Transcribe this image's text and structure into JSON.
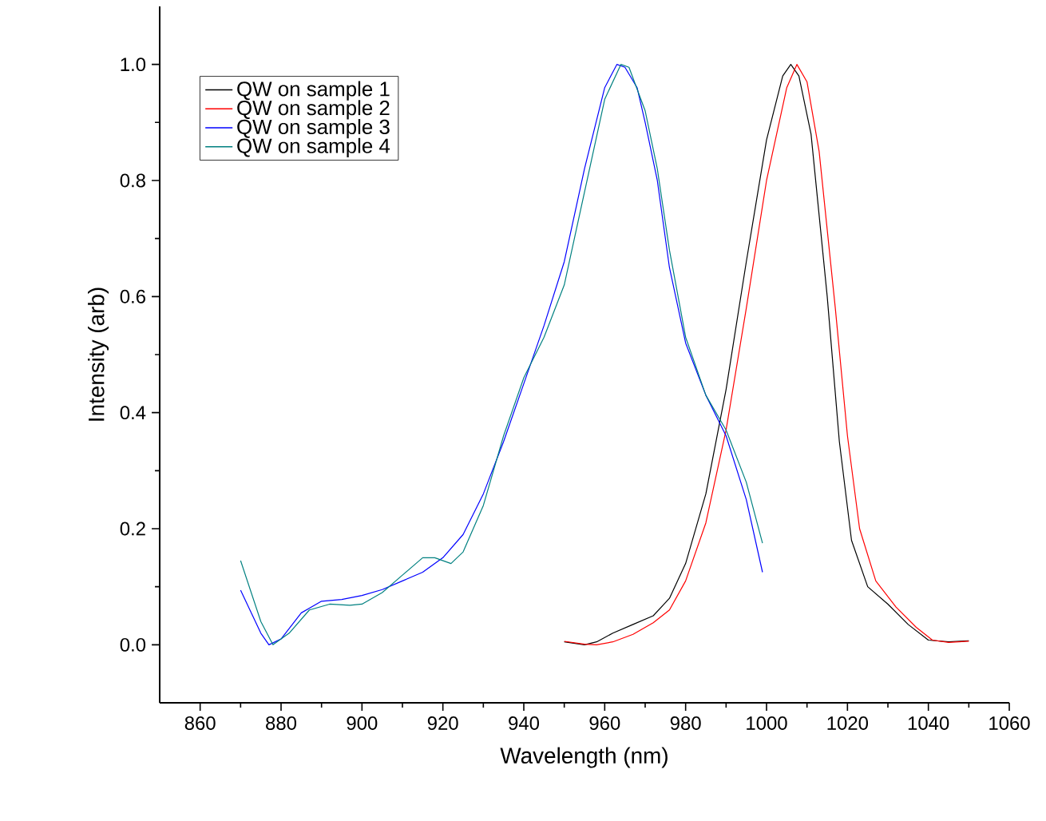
{
  "chart_data": {
    "type": "line",
    "xlabel": "Wavelength (nm)",
    "ylabel": "Intensity (arb)",
    "xlim": [
      850,
      1060
    ],
    "ylim": [
      -0.1,
      1.1
    ],
    "xticks": [
      860,
      880,
      900,
      920,
      940,
      960,
      980,
      1000,
      1020,
      1040,
      1060
    ],
    "yticks": [
      {
        "value": 0,
        "label": "0.0"
      },
      {
        "value": 0.2,
        "label": "0.2"
      },
      {
        "value": 0.4,
        "label": "0.4"
      },
      {
        "value": 0.6,
        "label": "0.6"
      },
      {
        "value": 0.8,
        "label": "0.8"
      },
      {
        "value": 1.0,
        "label": "1.0"
      }
    ],
    "legend": "top left",
    "grid": false,
    "series": [
      {
        "name": "QW on sample 1",
        "color": "#000000",
        "x": [
          950,
          955,
          958,
          962,
          967,
          972,
          976,
          980,
          985,
          990,
          995,
          1000,
          1004,
          1006,
          1008,
          1011,
          1015,
          1018,
          1021,
          1025,
          1030,
          1035,
          1040,
          1045,
          1050
        ],
        "values": [
          0.005,
          0.0,
          0.005,
          0.02,
          0.035,
          0.05,
          0.08,
          0.14,
          0.26,
          0.44,
          0.66,
          0.87,
          0.98,
          1.0,
          0.98,
          0.88,
          0.6,
          0.35,
          0.18,
          0.1,
          0.07,
          0.035,
          0.008,
          0.005,
          0.007
        ]
      },
      {
        "name": "QW on sample 2",
        "color": "#ff0000",
        "x": [
          950,
          955,
          958,
          962,
          967,
          972,
          976,
          980,
          985,
          990,
          995,
          1000,
          1005,
          1007.5,
          1010,
          1013,
          1017,
          1020,
          1023,
          1027,
          1032,
          1037,
          1041,
          1045,
          1050
        ],
        "values": [
          0.006,
          0.001,
          0.0,
          0.005,
          0.018,
          0.038,
          0.06,
          0.11,
          0.21,
          0.37,
          0.58,
          0.8,
          0.96,
          1.0,
          0.97,
          0.85,
          0.58,
          0.36,
          0.2,
          0.11,
          0.065,
          0.03,
          0.008,
          0.004,
          0.006
        ]
      },
      {
        "name": "QW on sample 3",
        "color": "#0000ff",
        "x": [
          870,
          875,
          877,
          880,
          885,
          890,
          895,
          900,
          905,
          910,
          915,
          920,
          925,
          930,
          935,
          940,
          945,
          950,
          955,
          960,
          963,
          965,
          968,
          970,
          973,
          976,
          980,
          985,
          990,
          995,
          999
        ],
        "values": [
          0.094,
          0.02,
          0.0,
          0.01,
          0.055,
          0.075,
          0.078,
          0.085,
          0.095,
          0.11,
          0.125,
          0.15,
          0.19,
          0.26,
          0.35,
          0.45,
          0.55,
          0.66,
          0.82,
          0.96,
          1.0,
          0.995,
          0.96,
          0.9,
          0.8,
          0.65,
          0.52,
          0.43,
          0.36,
          0.25,
          0.125
        ]
      },
      {
        "name": "QW on sample 4",
        "color": "#008080",
        "x": [
          870,
          875,
          878,
          882,
          887,
          892,
          897,
          900,
          905,
          910,
          915,
          918,
          922,
          925,
          930,
          935,
          940,
          945,
          950,
          955,
          960,
          964,
          966,
          970,
          973,
          976,
          980,
          985,
          990,
          995,
          999
        ],
        "values": [
          0.145,
          0.04,
          0.0,
          0.02,
          0.06,
          0.07,
          0.068,
          0.07,
          0.09,
          0.12,
          0.15,
          0.15,
          0.14,
          0.16,
          0.24,
          0.36,
          0.46,
          0.53,
          0.62,
          0.78,
          0.94,
          1.0,
          0.995,
          0.92,
          0.82,
          0.68,
          0.53,
          0.43,
          0.37,
          0.28,
          0.175
        ]
      }
    ]
  }
}
